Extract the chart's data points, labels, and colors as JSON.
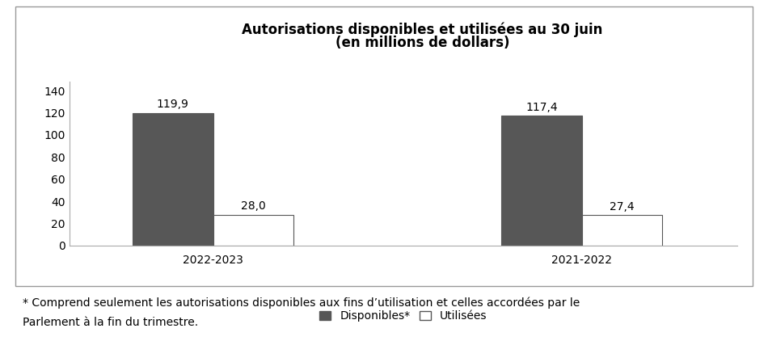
{
  "title_line1": "Autorisations disponibles et utilisées au 30 juin",
  "title_line2": "(en millions de dollars)",
  "groups": [
    "2022-2023",
    "2021-2022"
  ],
  "disponibles": [
    119.9,
    117.4
  ],
  "utilisees": [
    28.0,
    27.4
  ],
  "disponibles_labels": [
    "119,9",
    "117,4"
  ],
  "utilisees_labels": [
    "28,0",
    "27,4"
  ],
  "bar_color_disponibles": "#575757",
  "bar_color_utilisees": "#ffffff",
  "bar_edge_color": "#575757",
  "legend_label_disponibles": "Disponibles*",
  "legend_label_utilisees": "Utilisées",
  "ylim": [
    0,
    148
  ],
  "yticks": [
    0,
    20,
    40,
    60,
    80,
    100,
    120,
    140
  ],
  "footnote_line1": "* Comprend seulement les autorisations disponibles aux fins d’utilisation et celles accordées par le",
  "footnote_line2": "Parlement à la fin du trimestre.",
  "title_fontsize": 12,
  "label_fontsize": 10,
  "tick_fontsize": 10,
  "legend_fontsize": 10,
  "footnote_fontsize": 10,
  "box_edge_color": "#999999"
}
